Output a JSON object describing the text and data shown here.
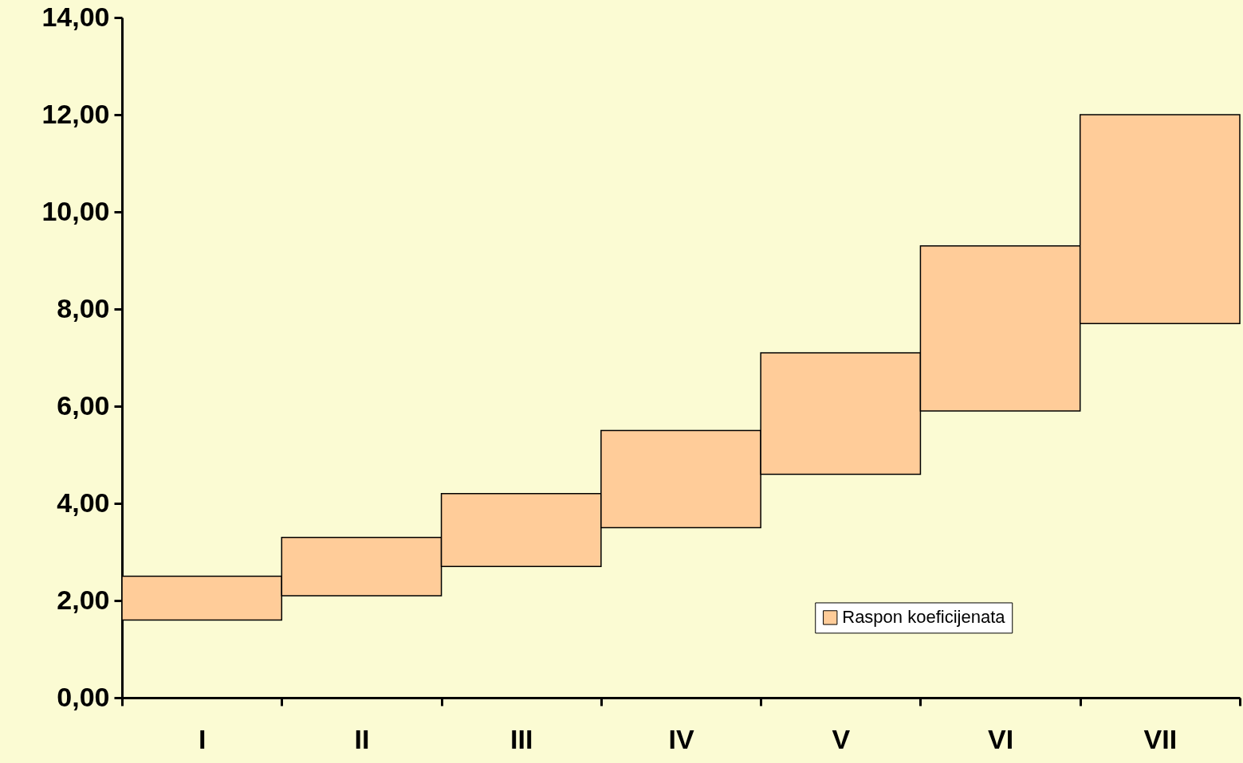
{
  "chart_data": {
    "type": "bar",
    "categories": [
      "I",
      "II",
      "III",
      "IV",
      "V",
      "VI",
      "VII"
    ],
    "series": [
      {
        "name": "Raspon koeficijenata",
        "color": "#ffcc99",
        "values": [
          0.9,
          1.2,
          1.5,
          2.0,
          2.5,
          3.4,
          4.3
        ],
        "base": [
          1.6,
          2.1,
          2.7,
          3.5,
          4.6,
          5.9,
          7.7
        ]
      }
    ],
    "ylim": [
      0,
      14
    ],
    "yticks": [
      {
        "value": 0,
        "label": "0,00"
      },
      {
        "value": 2,
        "label": "2,00"
      },
      {
        "value": 4,
        "label": "4,00"
      },
      {
        "value": 6,
        "label": "6,00"
      },
      {
        "value": 8,
        "label": "8,00"
      },
      {
        "value": 10,
        "label": "10,00"
      },
      {
        "value": 12,
        "label": "12,00"
      },
      {
        "value": 14,
        "label": "14,00"
      }
    ],
    "grid": false,
    "legend": "bottom right"
  }
}
